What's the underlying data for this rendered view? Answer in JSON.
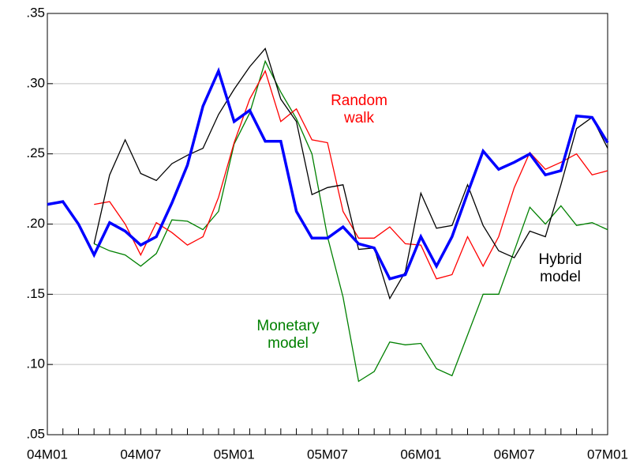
{
  "chart_data": {
    "type": "line",
    "categories": [
      "04M01",
      null,
      null,
      null,
      null,
      null,
      "04M07",
      null,
      null,
      null,
      null,
      null,
      "05M01",
      null,
      null,
      null,
      null,
      null,
      "05M07",
      null,
      null,
      null,
      null,
      null,
      "06M01",
      null,
      null,
      null,
      null,
      null,
      "06M07",
      null,
      null,
      null,
      null,
      null,
      "07M01"
    ],
    "series": [
      {
        "color": "#0000ff",
        "width": 3.5,
        "values": [
          0.214,
          0.216,
          0.2,
          0.178,
          0.201,
          0.195,
          0.185,
          0.191,
          0.215,
          0.242,
          0.284,
          0.309,
          0.273,
          0.281,
          0.259,
          0.259,
          0.209,
          0.19,
          0.19,
          0.198,
          0.186,
          0.183,
          0.161,
          0.164,
          0.191,
          0.17,
          0.191,
          0.222,
          0.252,
          0.239,
          0.244,
          0.25,
          0.235,
          0.238,
          0.277,
          0.276,
          0.258
        ]
      },
      {
        "name": "Random walk",
        "color": "#ff0000",
        "width": 1.3,
        "values": [
          null,
          null,
          null,
          0.214,
          0.216,
          0.2,
          0.178,
          0.201,
          0.194,
          0.185,
          0.191,
          0.219,
          0.258,
          0.289,
          0.309,
          0.273,
          0.282,
          0.26,
          0.258,
          0.209,
          0.19,
          0.19,
          0.198,
          0.186,
          0.185,
          0.161,
          0.164,
          0.191,
          0.17,
          0.191,
          0.226,
          0.251,
          0.239,
          0.244,
          0.25,
          0.235,
          0.238
        ]
      },
      {
        "name": "Hybrid model",
        "color": "#000000",
        "width": 1.3,
        "values": [
          null,
          null,
          null,
          0.186,
          0.235,
          0.26,
          0.236,
          0.231,
          0.243,
          0.249,
          0.254,
          0.278,
          0.296,
          0.312,
          0.325,
          0.289,
          0.273,
          0.221,
          0.226,
          0.228,
          0.182,
          0.183,
          0.147,
          0.166,
          0.222,
          0.197,
          0.199,
          0.228,
          0.199,
          0.181,
          0.176,
          0.195,
          0.191,
          0.228,
          0.268,
          0.276,
          0.254
        ]
      },
      {
        "name": "Monetary model",
        "color": "#008000",
        "width": 1.3,
        "values": [
          null,
          null,
          null,
          0.186,
          0.181,
          0.178,
          0.17,
          0.179,
          0.203,
          0.202,
          0.196,
          0.209,
          0.257,
          0.279,
          0.316,
          0.294,
          0.275,
          0.25,
          0.191,
          0.148,
          0.088,
          0.095,
          0.116,
          0.114,
          0.115,
          0.097,
          0.092,
          0.121,
          0.15,
          0.15,
          0.181,
          0.212,
          0.2,
          0.213,
          0.199,
          0.201,
          0.196
        ]
      }
    ],
    "ylim": [
      0.05,
      0.35
    ],
    "yticks": [
      {
        "value": 0.05,
        "label": ".05"
      },
      {
        "value": 0.1,
        "label": ".10"
      },
      {
        "value": 0.15,
        "label": ".15"
      },
      {
        "value": 0.2,
        "label": ".20"
      },
      {
        "value": 0.25,
        "label": ".25"
      },
      {
        "value": 0.3,
        "label": ".30"
      },
      {
        "value": 0.35,
        "label": ".35"
      }
    ],
    "grid": true
  }
}
